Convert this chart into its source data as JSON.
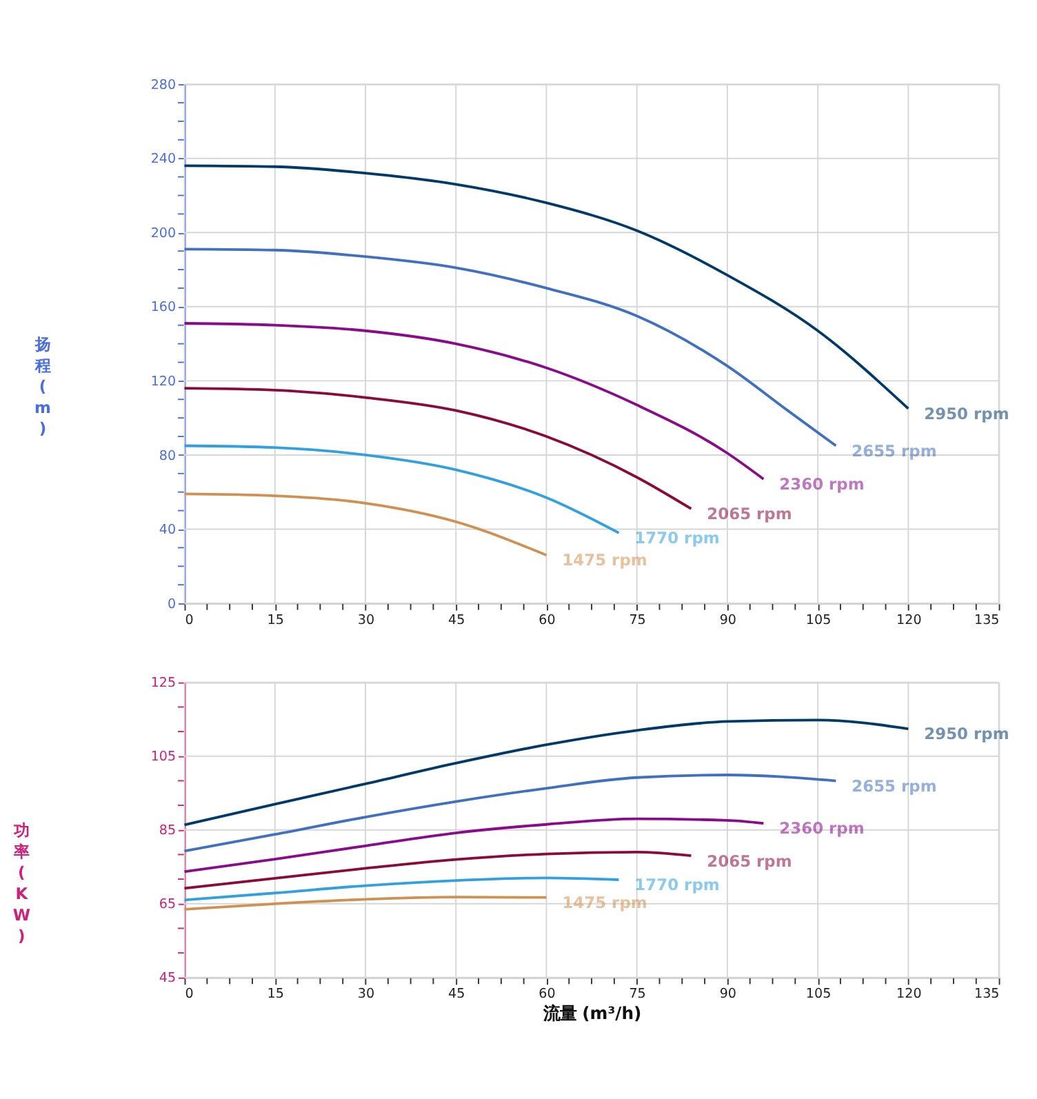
{
  "chart_data": [
    {
      "type": "line",
      "ylabel": "扬程(m)",
      "xlim": [
        0,
        135
      ],
      "ylim": [
        0,
        280
      ],
      "grid": true,
      "legend": false,
      "marker": "none",
      "line_style": "solid",
      "xticks": [
        0,
        {
          "value": 3.75,
          "label": null
        },
        {
          "value": 7.5,
          "label": null
        },
        {
          "value": 11.25,
          "label": null
        },
        15,
        {
          "value": 18.75,
          "label": null
        },
        {
          "value": 22.5,
          "label": null
        },
        {
          "value": 26.25,
          "label": null
        },
        30,
        {
          "value": 33.75,
          "label": null
        },
        {
          "value": 37.5,
          "label": null
        },
        {
          "value": 41.25,
          "label": null
        },
        45,
        {
          "value": 48.75,
          "label": null
        },
        {
          "value": 52.5,
          "label": null
        },
        {
          "value": 56.25,
          "label": null
        },
        60,
        {
          "value": 63.75,
          "label": null
        },
        {
          "value": 67.5,
          "label": null
        },
        {
          "value": 71.25,
          "label": null
        },
        75,
        {
          "value": 78.75,
          "label": null
        },
        {
          "value": 82.5,
          "label": null
        },
        {
          "value": 86.25,
          "label": null
        },
        90,
        {
          "value": 93.75,
          "label": null
        },
        {
          "value": 97.5,
          "label": null
        },
        {
          "value": 101.25,
          "label": null
        },
        105,
        {
          "value": 108.75,
          "label": null
        },
        {
          "value": 112.5,
          "label": null
        },
        {
          "value": 116.25,
          "label": null
        },
        120,
        {
          "value": 123.75,
          "label": null
        },
        {
          "value": 127.5,
          "label": null
        },
        {
          "value": 131.25,
          "label": null
        },
        135
      ],
      "yticks": [
        0,
        {
          "value": 10,
          "label": null
        },
        {
          "value": 20,
          "label": null
        },
        {
          "value": 30,
          "label": null
        },
        40,
        {
          "value": 50,
          "label": null
        },
        {
          "value": 60,
          "label": null
        },
        {
          "value": 70,
          "label": null
        },
        80,
        {
          "value": 90,
          "label": null
        },
        {
          "value": 100,
          "label": null
        },
        {
          "value": 110,
          "label": null
        },
        120,
        {
          "value": 130,
          "label": null
        },
        {
          "value": 140,
          "label": null
        },
        {
          "value": 150,
          "label": null
        },
        160,
        {
          "value": 170,
          "label": null
        },
        {
          "value": 180,
          "label": null
        },
        {
          "value": 190,
          "label": null
        },
        200,
        {
          "value": 210,
          "label": null
        },
        {
          "value": 220,
          "label": null
        },
        {
          "value": 230,
          "label": null
        },
        240,
        {
          "value": 250,
          "label": null
        },
        {
          "value": 260,
          "label": null
        },
        {
          "value": 270,
          "label": null
        },
        280
      ],
      "series": [
        {
          "name": "2950 rpm",
          "color": "#003a6b",
          "x": [
            0,
            15,
            30,
            45,
            60,
            75,
            90,
            105,
            120
          ],
          "values": [
            236,
            235.5,
            232,
            226,
            216,
            201,
            177,
            147,
            105
          ]
        },
        {
          "name": "2655 rpm",
          "color": "#4070c0",
          "x": [
            0,
            15,
            30,
            45,
            60,
            75,
            90,
            100,
            108
          ],
          "values": [
            191,
            190.5,
            187,
            181,
            170,
            155,
            128,
            104,
            85
          ]
        },
        {
          "name": "2360 rpm",
          "color": "#8b0a8b",
          "x": [
            0,
            15,
            30,
            45,
            60,
            75,
            90,
            96
          ],
          "values": [
            151,
            150,
            147,
            140,
            127,
            107,
            81,
            67
          ]
        },
        {
          "name": "2065 rpm",
          "color": "#8b0a3a",
          "x": [
            0,
            15,
            30,
            45,
            60,
            75,
            84
          ],
          "values": [
            116,
            115,
            111,
            104,
            90,
            68,
            51
          ]
        },
        {
          "name": "1770 rpm",
          "color": "#30a0e0",
          "x": [
            0,
            15,
            30,
            45,
            60,
            72
          ],
          "values": [
            85,
            84,
            80,
            72,
            57,
            38
          ]
        },
        {
          "name": "1475 rpm",
          "color": "#d09050",
          "x": [
            0,
            15,
            30,
            45,
            60
          ],
          "values": [
            59,
            58,
            54,
            44,
            26
          ]
        }
      ]
    },
    {
      "type": "line",
      "ylabel": "功率(KW)",
      "xlabel": "流量 (m³/h)",
      "xlim": [
        0,
        135
      ],
      "ylim": [
        45,
        125
      ],
      "grid": true,
      "legend": false,
      "marker": "none",
      "line_style": "solid",
      "xticks": [
        0,
        {
          "value": 3.75,
          "label": null
        },
        {
          "value": 7.5,
          "label": null
        },
        {
          "value": 11.25,
          "label": null
        },
        15,
        {
          "value": 18.75,
          "label": null
        },
        {
          "value": 22.5,
          "label": null
        },
        {
          "value": 26.25,
          "label": null
        },
        30,
        {
          "value": 33.75,
          "label": null
        },
        {
          "value": 37.5,
          "label": null
        },
        {
          "value": 41.25,
          "label": null
        },
        45,
        {
          "value": 48.75,
          "label": null
        },
        {
          "value": 52.5,
          "label": null
        },
        {
          "value": 56.25,
          "label": null
        },
        60,
        {
          "value": 63.75,
          "label": null
        },
        {
          "value": 67.5,
          "label": null
        },
        {
          "value": 71.25,
          "label": null
        },
        75,
        {
          "value": 78.75,
          "label": null
        },
        {
          "value": 82.5,
          "label": null
        },
        {
          "value": 86.25,
          "label": null
        },
        90,
        {
          "value": 93.75,
          "label": null
        },
        {
          "value": 97.5,
          "label": null
        },
        {
          "value": 101.25,
          "label": null
        },
        105,
        {
          "value": 108.75,
          "label": null
        },
        {
          "value": 112.5,
          "label": null
        },
        {
          "value": 116.25,
          "label": null
        },
        120,
        {
          "value": 123.75,
          "label": null
        },
        {
          "value": 127.5,
          "label": null
        },
        {
          "value": 131.25,
          "label": null
        },
        135
      ],
      "yticks": [
        45,
        {
          "value": 51.67,
          "label": null
        },
        {
          "value": 58.33,
          "label": null
        },
        65,
        {
          "value": 71.67,
          "label": null
        },
        {
          "value": 78.33,
          "label": null
        },
        85,
        {
          "value": 91.67,
          "label": null
        },
        {
          "value": 98.33,
          "label": null
        },
        105,
        {
          "value": 111.67,
          "label": null
        },
        {
          "value": 118.33,
          "label": null
        },
        125
      ],
      "series": [
        {
          "name": "2950 rpm",
          "color": "#003a6b",
          "x": [
            0,
            15,
            30,
            45,
            60,
            75,
            90,
            105,
            120
          ],
          "values": [
            86.4,
            92,
            97.5,
            103.1,
            108.1,
            112,
            114.4,
            114.8,
            112.4
          ]
        },
        {
          "name": "2655 rpm",
          "color": "#4070c0",
          "x": [
            0,
            15,
            30,
            45,
            60,
            75,
            90,
            108
          ],
          "values": [
            79.3,
            83.8,
            88.5,
            92.7,
            96.3,
            99.2,
            99.9,
            98.3
          ]
        },
        {
          "name": "2360 rpm",
          "color": "#8b0a8b",
          "x": [
            0,
            15,
            30,
            45,
            60,
            75,
            90,
            96
          ],
          "values": [
            73.7,
            77.1,
            80.7,
            84.2,
            86.5,
            88,
            87.6,
            86.8
          ]
        },
        {
          "name": "2065 rpm",
          "color": "#8b0a3a",
          "x": [
            0,
            15,
            30,
            45,
            60,
            75,
            84
          ],
          "values": [
            69.2,
            71.9,
            74.6,
            77,
            78.5,
            79,
            78
          ]
        },
        {
          "name": "1770 rpm",
          "color": "#30a0e0",
          "x": [
            0,
            15,
            30,
            45,
            60,
            72
          ],
          "values": [
            66,
            67.9,
            69.9,
            71.3,
            72,
            71.5
          ]
        },
        {
          "name": "1475 rpm",
          "color": "#d09050",
          "x": [
            0,
            15,
            30,
            45,
            60
          ],
          "values": [
            63.5,
            65,
            66.2,
            66.8,
            66.7
          ]
        }
      ]
    }
  ]
}
